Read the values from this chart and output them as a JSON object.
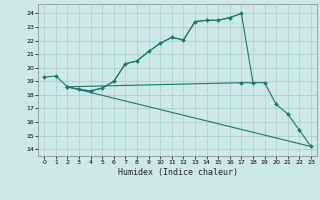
{
  "title": "",
  "xlabel": "Humidex (Indice chaleur)",
  "background_color": "#cce8e8",
  "grid_color": "#aacccc",
  "line_color": "#1a7a6e",
  "xlim": [
    -0.5,
    23.5
  ],
  "ylim": [
    13.5,
    24.7
  ],
  "xticks": [
    0,
    1,
    2,
    3,
    4,
    5,
    6,
    7,
    8,
    9,
    10,
    11,
    12,
    13,
    14,
    15,
    16,
    17,
    18,
    19,
    20,
    21,
    22,
    23
  ],
  "yticks": [
    14,
    15,
    16,
    17,
    18,
    19,
    20,
    21,
    22,
    23,
    24
  ],
  "lines": [
    {
      "x": [
        0,
        1,
        2,
        3,
        4,
        5,
        6,
        7,
        8,
        9,
        10,
        11,
        12,
        13,
        14,
        15,
        16,
        17
      ],
      "y": [
        19.3,
        19.4,
        18.6,
        18.4,
        18.3,
        18.5,
        19.0,
        20.3,
        20.5,
        21.2,
        21.8,
        22.25,
        22.05,
        23.4,
        23.5,
        23.5,
        23.7,
        24.0
      ],
      "has_marker": true
    },
    {
      "x": [
        2,
        3,
        4,
        5,
        6,
        7,
        8,
        9,
        10,
        11,
        12,
        13,
        14,
        15,
        16,
        17,
        18
      ],
      "y": [
        18.6,
        18.4,
        18.3,
        18.5,
        19.0,
        20.3,
        20.5,
        21.2,
        21.8,
        22.25,
        22.05,
        23.4,
        23.5,
        23.5,
        23.7,
        24.0,
        18.9
      ],
      "has_marker": false
    },
    {
      "x": [
        2,
        17,
        18,
        19,
        20,
        21,
        22,
        23
      ],
      "y": [
        18.6,
        18.9,
        18.9,
        18.9,
        17.3,
        16.6,
        15.4,
        14.2
      ],
      "has_marker": true
    },
    {
      "x": [
        2,
        23
      ],
      "y": [
        18.6,
        14.2
      ],
      "has_marker": false
    }
  ]
}
